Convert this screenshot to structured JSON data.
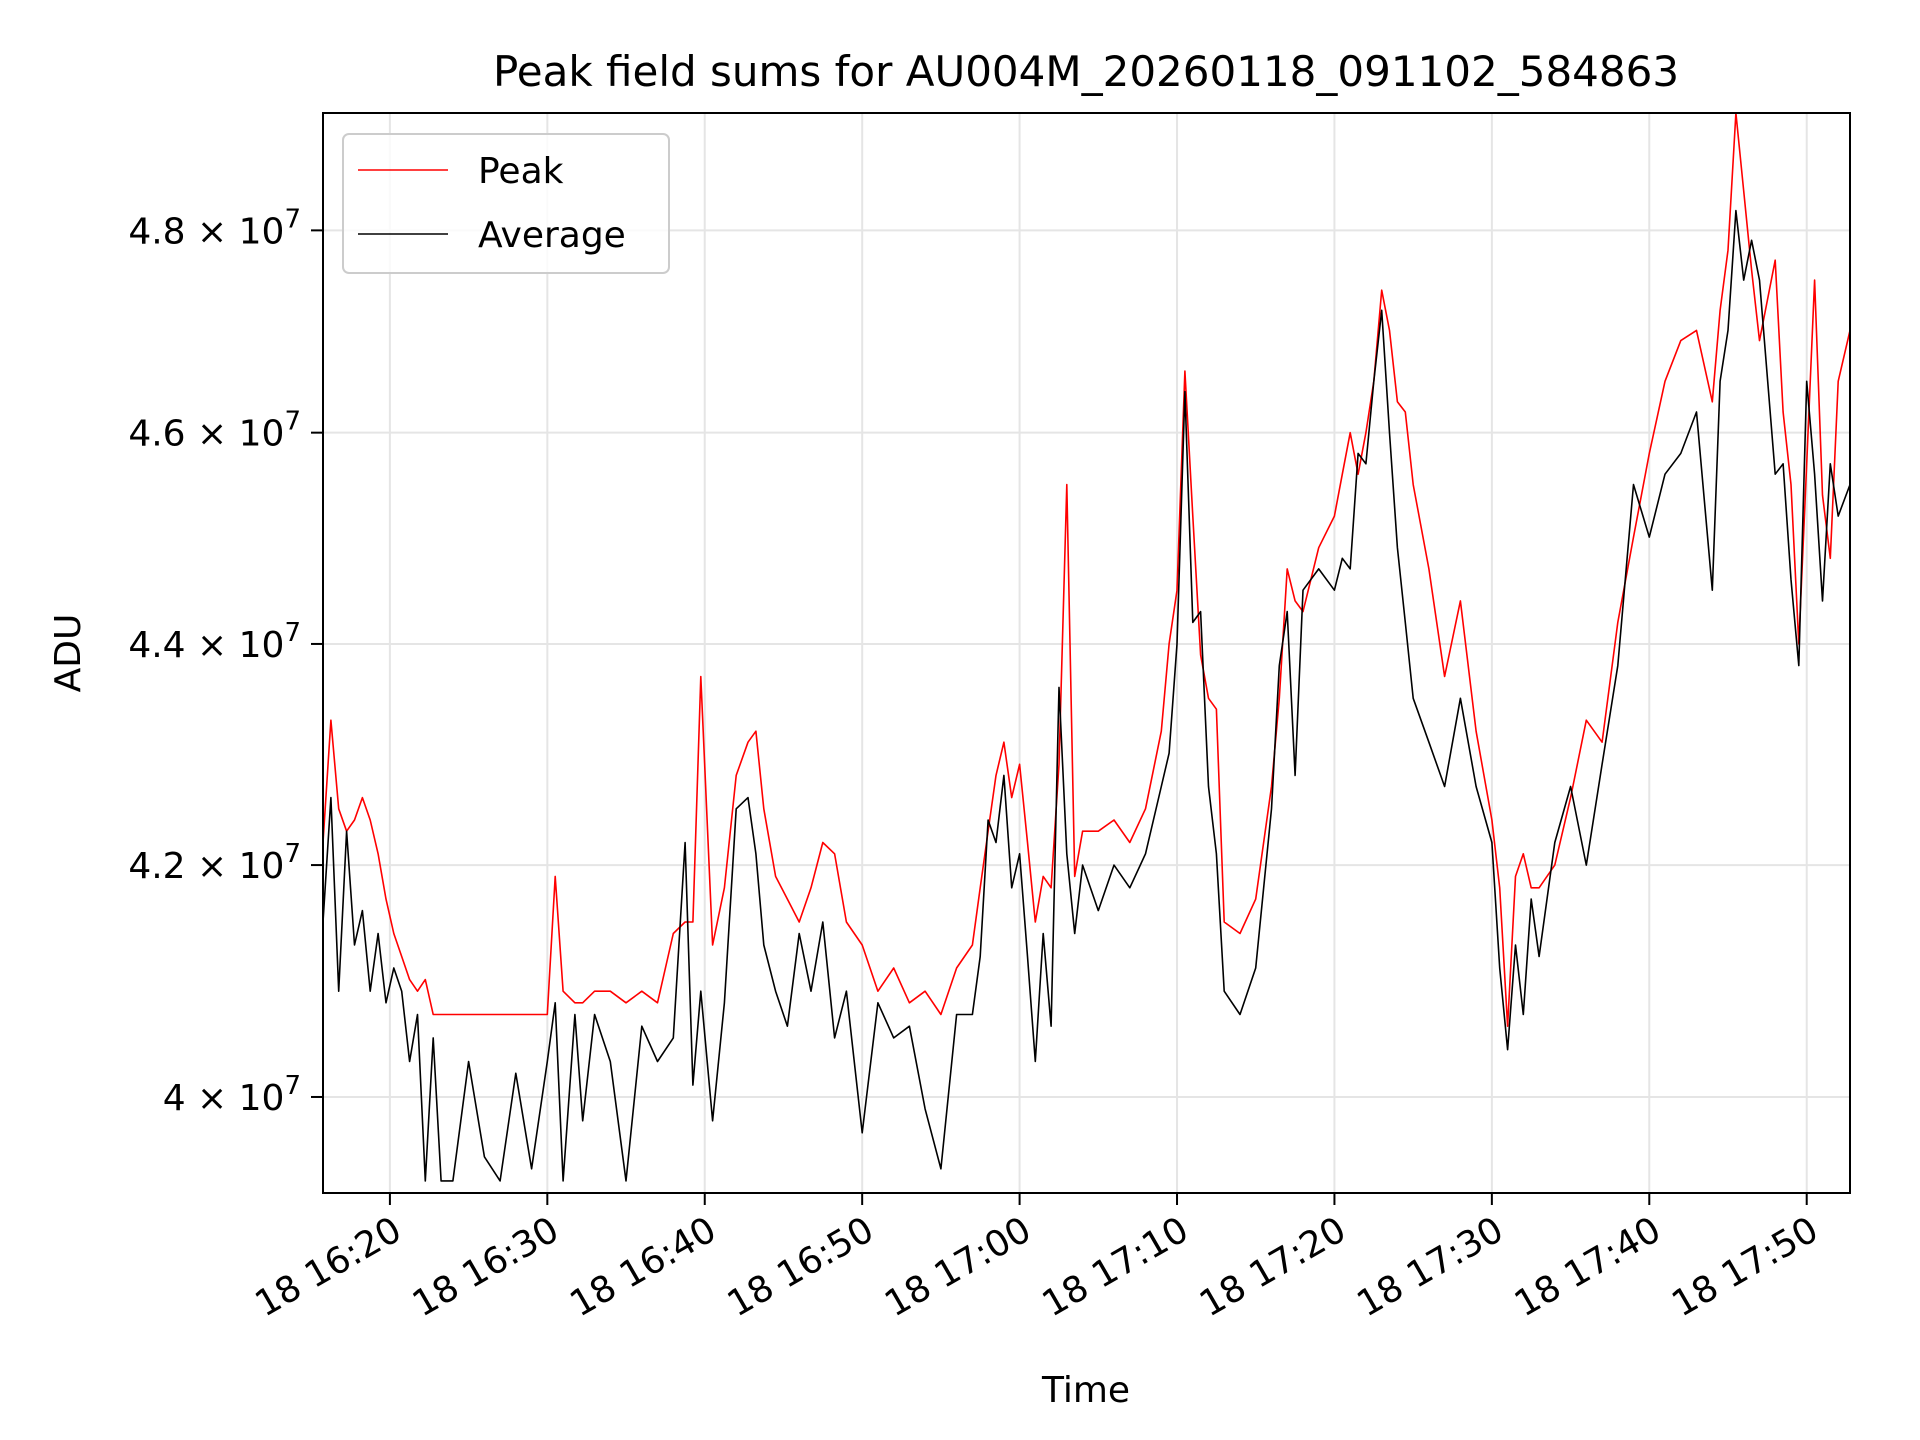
{
  "chart_data": {
    "type": "line",
    "title": "Peak field sums for AU004M_20260118_091102_584863",
    "xlabel": "Time",
    "ylabel": "ADU",
    "x_ticks": [
      "18 16:20",
      "18 16:30",
      "18 16:40",
      "18 16:50",
      "18 17:00",
      "18 17:10",
      "18 17:20",
      "18 17:30",
      "18 17:40",
      "18 17:50"
    ],
    "y_ticks": [
      {
        "value": 40000000,
        "mantissa": "4",
        "base": "10",
        "exp": "7"
      },
      {
        "value": 42000000,
        "mantissa": "4.2",
        "base": "10",
        "exp": "7"
      },
      {
        "value": 44000000,
        "mantissa": "4.4",
        "base": "10",
        "exp": "7"
      },
      {
        "value": 46000000,
        "mantissa": "4.6",
        "base": "10",
        "exp": "7"
      },
      {
        "value": 48000000,
        "mantissa": "4.8",
        "base": "10",
        "exp": "7"
      }
    ],
    "xlim": [
      "16:15:45",
      "17:52:45"
    ],
    "ylim": [
      39200000,
      49200000
    ],
    "yscale": "log",
    "grid": true,
    "legend": "top-left",
    "series": [
      {
        "name": "Peak",
        "color": "#ff0000",
        "x": [
          "16:15:45",
          "16:16:15",
          "16:16:45",
          "16:17:15",
          "16:17:45",
          "16:18:15",
          "16:18:45",
          "16:19:15",
          "16:19:45",
          "16:20:15",
          "16:20:45",
          "16:21:15",
          "16:21:45",
          "16:22:15",
          "16:22:45",
          "16:23:15",
          "16:24:00",
          "16:25:00",
          "16:26:00",
          "16:27:00",
          "16:28:00",
          "16:29:00",
          "16:30:00",
          "16:30:30",
          "16:31:00",
          "16:31:45",
          "16:32:15",
          "16:33:00",
          "16:34:00",
          "16:35:00",
          "16:36:00",
          "16:37:00",
          "16:38:00",
          "16:38:45",
          "16:39:15",
          "16:39:45",
          "16:40:30",
          "16:41:15",
          "16:42:00",
          "16:42:45",
          "16:43:15",
          "16:43:45",
          "16:44:30",
          "16:45:15",
          "16:46:00",
          "16:46:45",
          "16:47:30",
          "16:48:15",
          "16:49:00",
          "16:50:00",
          "16:51:00",
          "16:52:00",
          "16:53:00",
          "16:54:00",
          "16:55:00",
          "16:56:00",
          "16:57:00",
          "16:57:30",
          "16:58:00",
          "16:58:30",
          "16:59:00",
          "16:59:30",
          "17:00:00",
          "17:00:30",
          "17:01:00",
          "17:01:30",
          "17:02:00",
          "17:02:30",
          "17:03:00",
          "17:03:30",
          "17:04:00",
          "17:05:00",
          "17:06:00",
          "17:07:00",
          "17:08:00",
          "17:09:00",
          "17:09:30",
          "17:10:00",
          "17:10:30",
          "17:11:00",
          "17:11:30",
          "17:12:00",
          "17:12:30",
          "17:13:00",
          "17:14:00",
          "17:15:00",
          "17:16:00",
          "17:16:30",
          "17:17:00",
          "17:17:30",
          "17:18:00",
          "17:19:00",
          "17:20:00",
          "17:20:30",
          "17:21:00",
          "17:21:30",
          "17:22:00",
          "17:22:30",
          "17:23:00",
          "17:23:30",
          "17:24:00",
          "17:24:30",
          "17:25:00",
          "17:26:00",
          "17:27:00",
          "17:28:00",
          "17:29:00",
          "17:30:00",
          "17:30:30",
          "17:31:00",
          "17:31:30",
          "17:32:00",
          "17:32:30",
          "17:33:00",
          "17:34:00",
          "17:35:00",
          "17:36:00",
          "17:37:00",
          "17:38:00",
          "17:39:00",
          "17:40:00",
          "17:41:00",
          "17:42:00",
          "17:43:00",
          "17:44:00",
          "17:44:30",
          "17:45:00",
          "17:45:30",
          "17:46:00",
          "17:46:30",
          "17:47:00",
          "17:48:00",
          "17:48:30",
          "17:49:00",
          "17:49:30",
          "17:50:00",
          "17:50:30",
          "17:51:00",
          "17:51:30",
          "17:52:00",
          "17:52:45"
        ],
        "values": [
          42200000,
          43300000,
          42500000,
          42300000,
          42400000,
          42600000,
          42400000,
          42100000,
          41700000,
          41400000,
          41200000,
          41000000,
          40900000,
          41000000,
          40700000,
          40700000,
          40700000,
          40700000,
          40700000,
          40700000,
          40700000,
          40700000,
          40700000,
          41900000,
          40900000,
          40800000,
          40800000,
          40900000,
          40900000,
          40800000,
          40900000,
          40800000,
          41400000,
          41500000,
          41500000,
          43700000,
          41300000,
          41800000,
          42800000,
          43100000,
          43200000,
          42500000,
          41900000,
          41700000,
          41500000,
          41800000,
          42200000,
          42100000,
          41500000,
          41300000,
          40900000,
          41100000,
          40800000,
          40900000,
          40700000,
          41100000,
          41300000,
          41800000,
          42300000,
          42800000,
          43100000,
          42600000,
          42900000,
          42200000,
          41500000,
          41900000,
          41800000,
          42900000,
          45500000,
          41900000,
          42300000,
          42300000,
          42400000,
          42200000,
          42500000,
          43200000,
          44000000,
          44500000,
          46600000,
          45200000,
          43900000,
          43500000,
          43400000,
          41500000,
          41400000,
          41700000,
          42700000,
          43500000,
          44700000,
          44400000,
          44300000,
          44900000,
          45200000,
          45600000,
          46000000,
          45600000,
          46000000,
          46500000,
          47400000,
          47000000,
          46300000,
          46200000,
          45500000,
          44700000,
          43700000,
          44400000,
          43200000,
          42400000,
          41800000,
          40600000,
          41900000,
          42100000,
          41800000,
          41800000,
          42000000,
          42600000,
          43300000,
          43100000,
          44200000,
          45000000,
          45800000,
          46500000,
          46900000,
          47000000,
          46300000,
          47200000,
          47800000,
          49200000,
          48400000,
          47600000,
          46900000,
          47700000,
          46200000,
          45500000,
          44000000,
          45700000,
          47500000,
          45400000,
          44800000,
          46500000,
          47000000
        ]
      },
      {
        "name": "Average",
        "color": "#000000",
        "x": [
          "16:15:45",
          "16:16:15",
          "16:16:45",
          "16:17:15",
          "16:17:45",
          "16:18:15",
          "16:18:45",
          "16:19:15",
          "16:19:45",
          "16:20:15",
          "16:20:45",
          "16:21:15",
          "16:21:45",
          "16:22:15",
          "16:22:45",
          "16:23:15",
          "16:24:00",
          "16:25:00",
          "16:26:00",
          "16:27:00",
          "16:28:00",
          "16:29:00",
          "16:30:00",
          "16:30:30",
          "16:31:00",
          "16:31:45",
          "16:32:15",
          "16:33:00",
          "16:34:00",
          "16:35:00",
          "16:36:00",
          "16:37:00",
          "16:38:00",
          "16:38:45",
          "16:39:15",
          "16:39:45",
          "16:40:30",
          "16:41:15",
          "16:42:00",
          "16:42:45",
          "16:43:15",
          "16:43:45",
          "16:44:30",
          "16:45:15",
          "16:46:00",
          "16:46:45",
          "16:47:30",
          "16:48:15",
          "16:49:00",
          "16:50:00",
          "16:51:00",
          "16:52:00",
          "16:53:00",
          "16:54:00",
          "16:55:00",
          "16:56:00",
          "16:57:00",
          "16:57:30",
          "16:58:00",
          "16:58:30",
          "16:59:00",
          "16:59:30",
          "17:00:00",
          "17:00:30",
          "17:01:00",
          "17:01:30",
          "17:02:00",
          "17:02:30",
          "17:03:00",
          "17:03:30",
          "17:04:00",
          "17:05:00",
          "17:06:00",
          "17:07:00",
          "17:08:00",
          "17:09:00",
          "17:09:30",
          "17:10:00",
          "17:10:30",
          "17:11:00",
          "17:11:30",
          "17:12:00",
          "17:12:30",
          "17:13:00",
          "17:14:00",
          "17:15:00",
          "17:16:00",
          "17:16:30",
          "17:17:00",
          "17:17:30",
          "17:18:00",
          "17:19:00",
          "17:20:00",
          "17:20:30",
          "17:21:00",
          "17:21:30",
          "17:22:00",
          "17:22:30",
          "17:23:00",
          "17:23:30",
          "17:24:00",
          "17:24:30",
          "17:25:00",
          "17:26:00",
          "17:27:00",
          "17:28:00",
          "17:29:00",
          "17:30:00",
          "17:30:30",
          "17:31:00",
          "17:31:30",
          "17:32:00",
          "17:32:30",
          "17:33:00",
          "17:34:00",
          "17:35:00",
          "17:36:00",
          "17:37:00",
          "17:38:00",
          "17:39:00",
          "17:40:00",
          "17:41:00",
          "17:42:00",
          "17:43:00",
          "17:44:00",
          "17:44:30",
          "17:45:00",
          "17:45:30",
          "17:46:00",
          "17:46:30",
          "17:47:00",
          "17:48:00",
          "17:48:30",
          "17:49:00",
          "17:49:30",
          "17:50:00",
          "17:50:30",
          "17:51:00",
          "17:51:30",
          "17:52:00",
          "17:52:45"
        ],
        "values": [
          41500000,
          42600000,
          40900000,
          42300000,
          41300000,
          41600000,
          40900000,
          41400000,
          40800000,
          41100000,
          40900000,
          40300000,
          40700000,
          39300000,
          40500000,
          39300000,
          39300000,
          40300000,
          39500000,
          39300000,
          40200000,
          39400000,
          40300000,
          40800000,
          39300000,
          40700000,
          39800000,
          40700000,
          40300000,
          39300000,
          40600000,
          40300000,
          40500000,
          42200000,
          40100000,
          40900000,
          39800000,
          40800000,
          42500000,
          42600000,
          42100000,
          41300000,
          40900000,
          40600000,
          41400000,
          40900000,
          41500000,
          40500000,
          40900000,
          39700000,
          40800000,
          40500000,
          40600000,
          39900000,
          39400000,
          40700000,
          40700000,
          41200000,
          42400000,
          42200000,
          42800000,
          41800000,
          42100000,
          41200000,
          40300000,
          41400000,
          40600000,
          43600000,
          42100000,
          41400000,
          42000000,
          41600000,
          42000000,
          41800000,
          42100000,
          42700000,
          43000000,
          44000000,
          46400000,
          44200000,
          44300000,
          42700000,
          42100000,
          40900000,
          40700000,
          41100000,
          42500000,
          43800000,
          44300000,
          42800000,
          44500000,
          44700000,
          44500000,
          44800000,
          44700000,
          45800000,
          45700000,
          46500000,
          47200000,
          46000000,
          44900000,
          44200000,
          43500000,
          43100000,
          42700000,
          43500000,
          42700000,
          42200000,
          41100000,
          40400000,
          41300000,
          40700000,
          41700000,
          41200000,
          42200000,
          42700000,
          42000000,
          42900000,
          43800000,
          45500000,
          45000000,
          45600000,
          45800000,
          46200000,
          44500000,
          46500000,
          47000000,
          48200000,
          47500000,
          47900000,
          47500000,
          45600000,
          45700000,
          44600000,
          43800000,
          46500000,
          45600000,
          44400000,
          45700000,
          45200000,
          45500000
        ]
      }
    ]
  }
}
